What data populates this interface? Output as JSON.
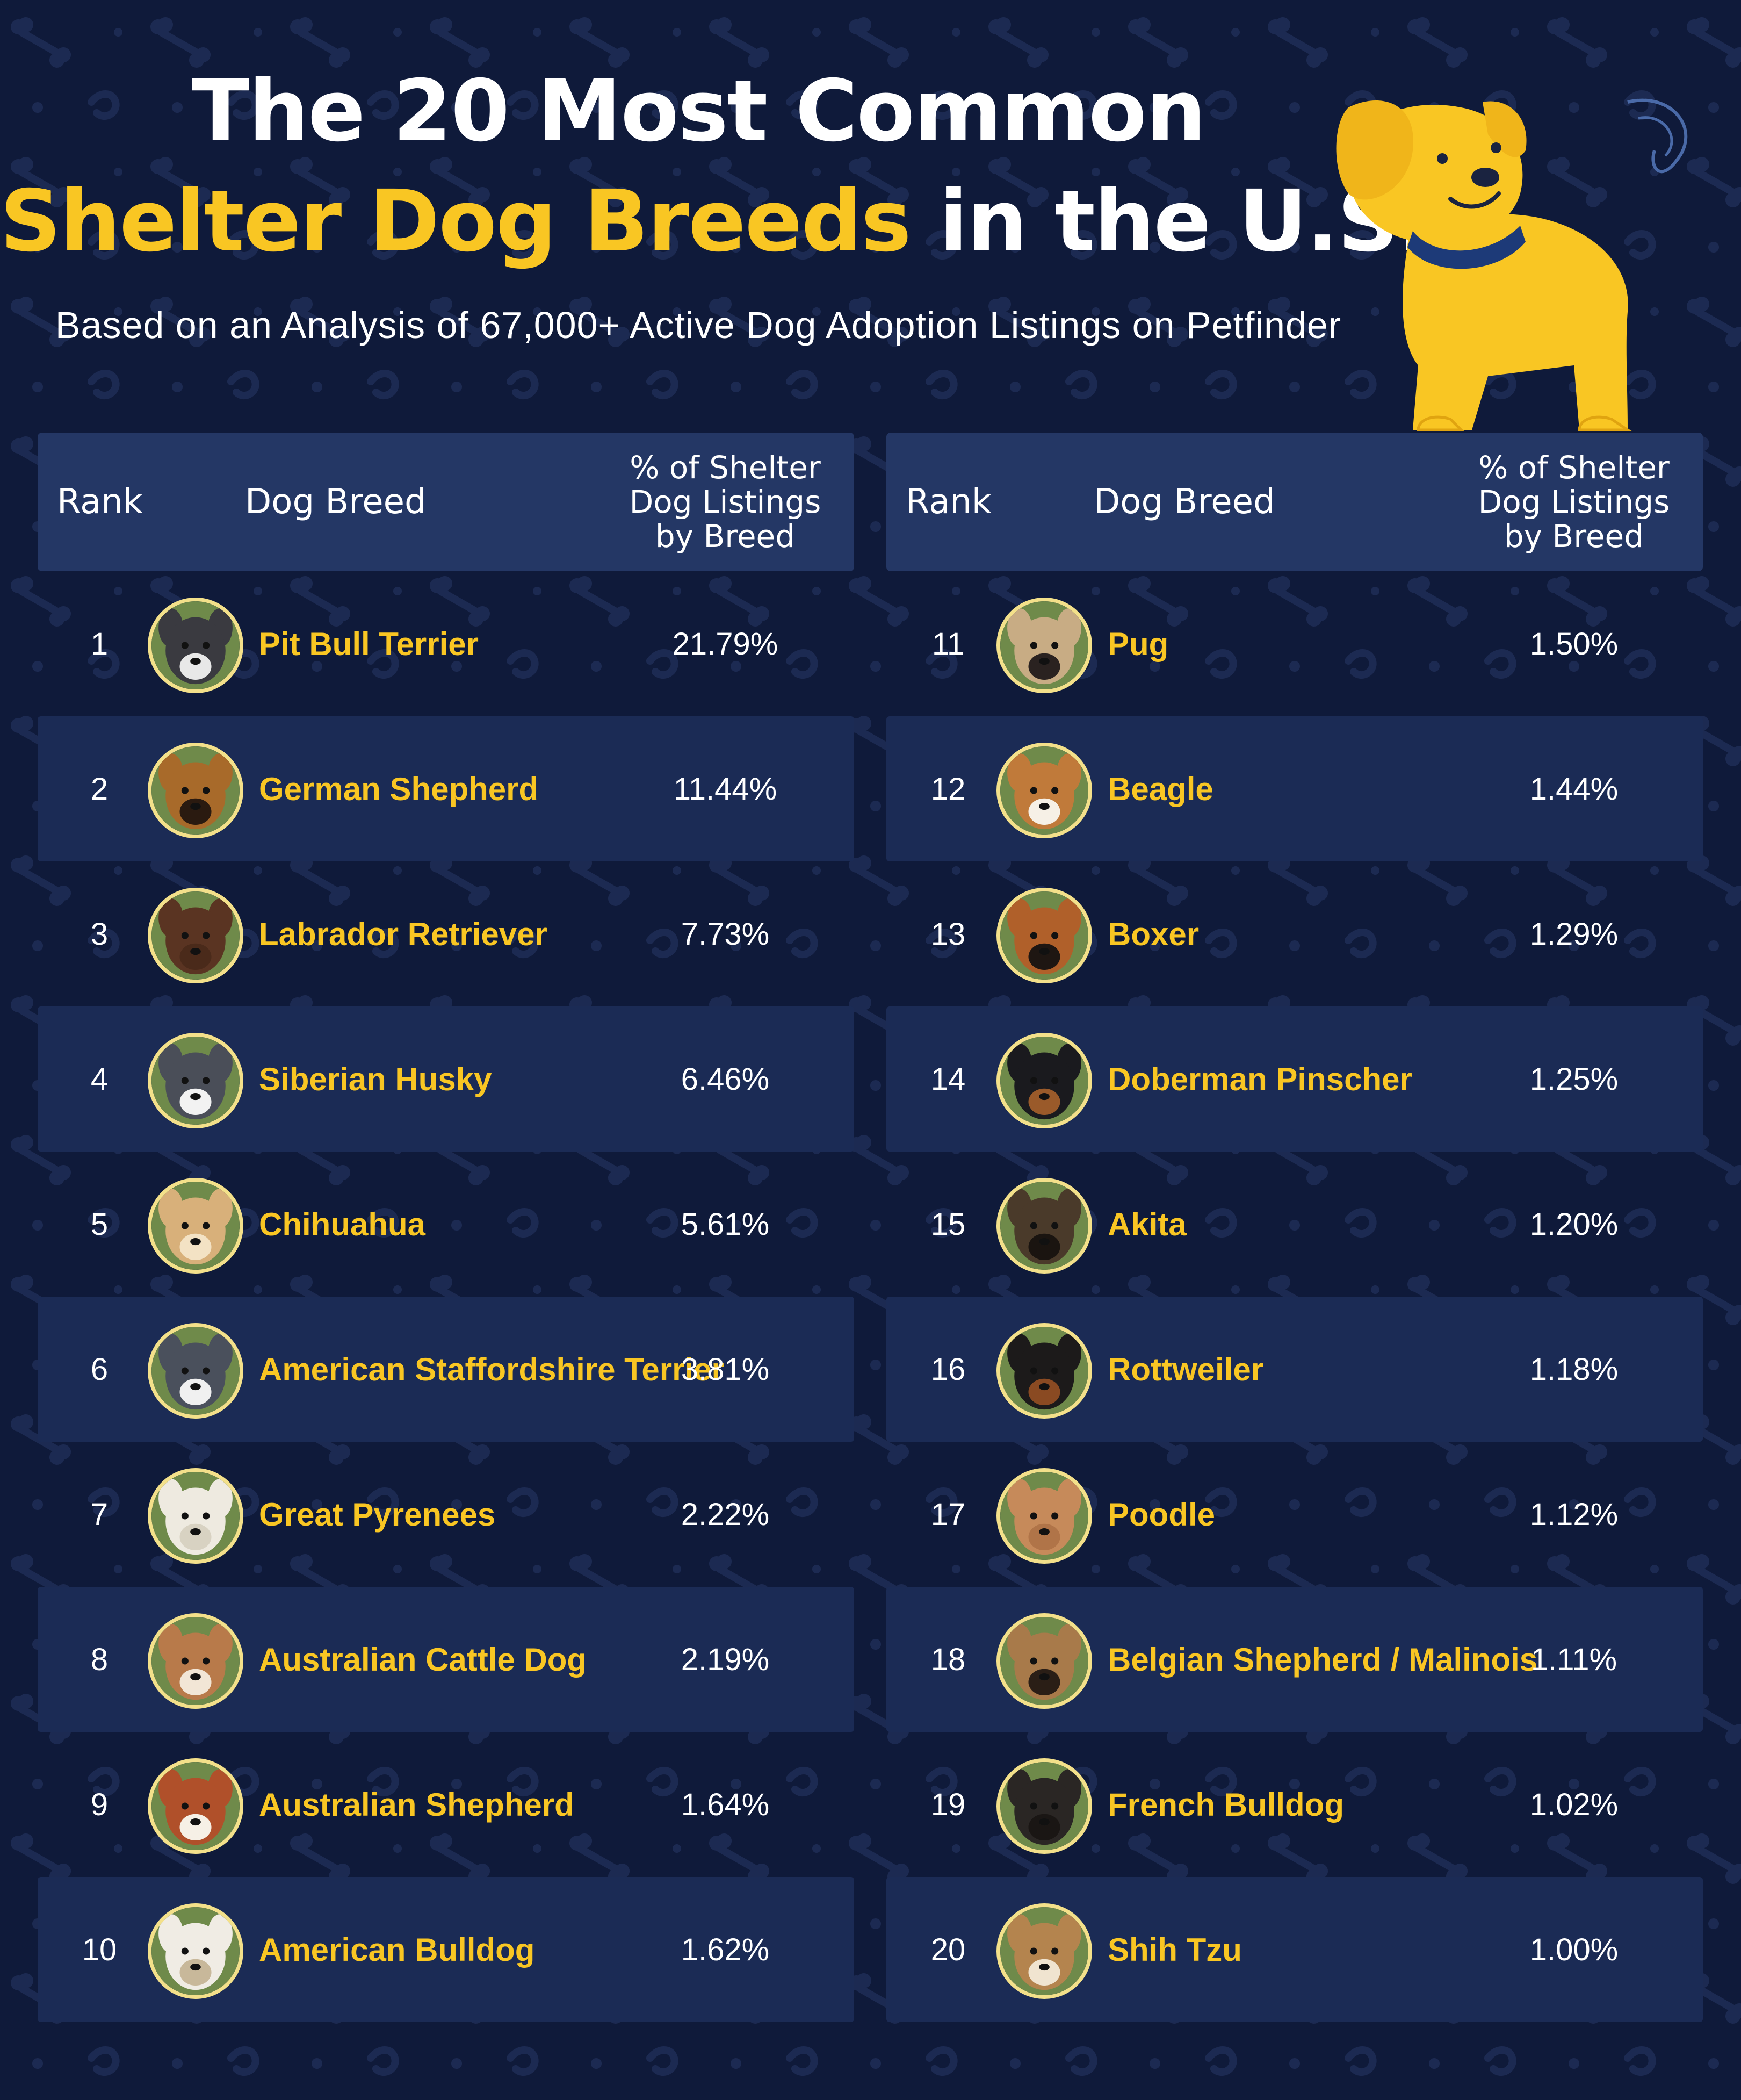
{
  "title": {
    "line1": "The 20 Most Common",
    "line2_highlight": "Shelter Dog Breeds",
    "line2_rest": " in the U.S.",
    "subtitle": "Based on an Analysis of 67,000+ Active Dog Adoption Listings on Petfinder"
  },
  "columns": {
    "rank": "Rank",
    "breed": "Dog Breed",
    "pct_line1": "% of Shelter",
    "pct_line2": "Dog Listings",
    "pct_line3": "by Breed"
  },
  "colors": {
    "background": "#0f1a3a",
    "header": "#243765",
    "row_shaded": "#1b2b55",
    "accent_yellow": "#f9c623",
    "avatar_ring": "#f3e08a"
  },
  "icons": {
    "mascot": "yellow-dog-illustration",
    "breed_avatar": "dog-face-photo"
  },
  "chart_data": {
    "type": "table",
    "columns": [
      "Rank",
      "Dog Breed",
      "% of Shelter Dog Listings by Breed"
    ],
    "rows": [
      {
        "rank": "1",
        "breed": "Pit Bull Terrier",
        "pct": "21.79%",
        "value": 21.79
      },
      {
        "rank": "2",
        "breed": "German Shepherd",
        "pct": "11.44%",
        "value": 11.44
      },
      {
        "rank": "3",
        "breed": "Labrador Retriever",
        "pct": "7.73%",
        "value": 7.73
      },
      {
        "rank": "4",
        "breed": "Siberian Husky",
        "pct": "6.46%",
        "value": 6.46
      },
      {
        "rank": "5",
        "breed": "Chihuahua",
        "pct": "5.61%",
        "value": 5.61
      },
      {
        "rank": "6",
        "breed": "American Staffordshire Terrier",
        "pct": "3.81%",
        "value": 3.81
      },
      {
        "rank": "7",
        "breed": "Great Pyrenees",
        "pct": "2.22%",
        "value": 2.22
      },
      {
        "rank": "8",
        "breed": "Australian Cattle Dog",
        "pct": "2.19%",
        "value": 2.19
      },
      {
        "rank": "9",
        "breed": "Australian Shepherd",
        "pct": "1.64%",
        "value": 1.64
      },
      {
        "rank": "10",
        "breed": "American Bulldog",
        "pct": "1.62%",
        "value": 1.62
      },
      {
        "rank": "11",
        "breed": "Pug",
        "pct": "1.50%",
        "value": 1.5
      },
      {
        "rank": "12",
        "breed": "Beagle",
        "pct": "1.44%",
        "value": 1.44
      },
      {
        "rank": "13",
        "breed": "Boxer",
        "pct": "1.29%",
        "value": 1.29
      },
      {
        "rank": "14",
        "breed": "Doberman Pinscher",
        "pct": "1.25%",
        "value": 1.25
      },
      {
        "rank": "15",
        "breed": "Akita",
        "pct": "1.20%",
        "value": 1.2
      },
      {
        "rank": "16",
        "breed": "Rottweiler",
        "pct": "1.18%",
        "value": 1.18
      },
      {
        "rank": "17",
        "breed": "Poodle",
        "pct": "1.12%",
        "value": 1.12
      },
      {
        "rank": "18",
        "breed": "Belgian Shepherd / Malinois",
        "pct": "1.11%",
        "value": 1.11
      },
      {
        "rank": "19",
        "breed": "French Bulldog",
        "pct": "1.02%",
        "value": 1.02
      },
      {
        "rank": "20",
        "breed": "Shih Tzu",
        "pct": "1.00%",
        "value": 1.0
      }
    ],
    "photo_colors": [
      {
        "fur": "#3a3a40",
        "muzzle": "#e8e8e8"
      },
      {
        "fur": "#a86a2a",
        "muzzle": "#2a1a10"
      },
      {
        "fur": "#5a3422",
        "muzzle": "#4a2a1a"
      },
      {
        "fur": "#4a4e58",
        "muzzle": "#f2f2f2"
      },
      {
        "fur": "#d8b07a",
        "muzzle": "#f3e2c4"
      },
      {
        "fur": "#4a505c",
        "muzzle": "#f0f0f0"
      },
      {
        "fur": "#eeeae0",
        "muzzle": "#d8d2c2"
      },
      {
        "fur": "#b87a4a",
        "muzzle": "#f2e6d6"
      },
      {
        "fur": "#b0502a",
        "muzzle": "#f6f0e6"
      },
      {
        "fur": "#f0ece4",
        "muzzle": "#c8b89a"
      },
      {
        "fur": "#c8ac84",
        "muzzle": "#2a2220"
      },
      {
        "fur": "#c07a3a",
        "muzzle": "#f6f0e6"
      },
      {
        "fur": "#b0602a",
        "muzzle": "#1e1612"
      },
      {
        "fur": "#1a1a1e",
        "muzzle": "#9a5a2a"
      },
      {
        "fur": "#4a3a2a",
        "muzzle": "#1a1410"
      },
      {
        "fur": "#1c1a1a",
        "muzzle": "#8a4a22"
      },
      {
        "fur": "#c68a5a",
        "muzzle": "#b07448"
      },
      {
        "fur": "#a87a4a",
        "muzzle": "#2a1e16"
      },
      {
        "fur": "#2a2624",
        "muzzle": "#1a1614"
      },
      {
        "fur": "#b4844e",
        "muzzle": "#f0e4d0"
      }
    ]
  }
}
